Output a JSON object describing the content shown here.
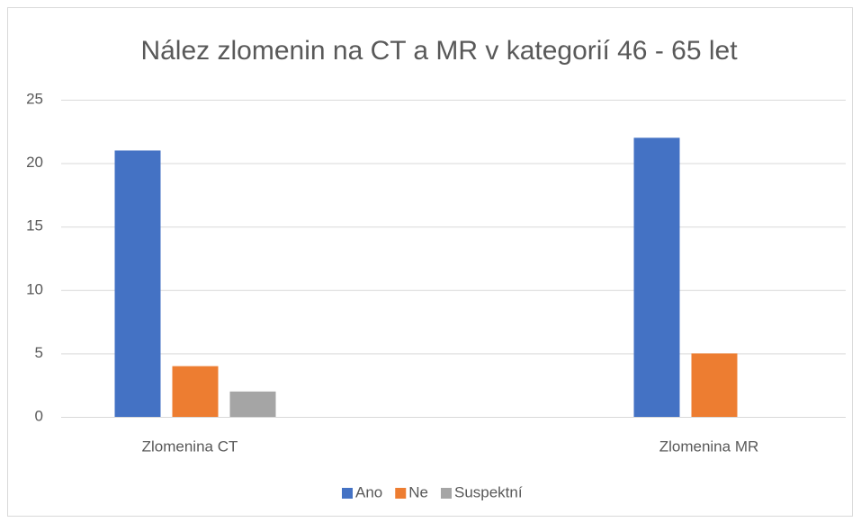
{
  "chart_data": {
    "type": "bar",
    "title": "Nález zlomenin na CT a MR v kategorií 46 - 65 let",
    "categories": [
      "Zlomenina CT",
      "Zlomenina MR"
    ],
    "series": [
      {
        "name": "Ano",
        "color": "#4472c4",
        "values": [
          21,
          22
        ]
      },
      {
        "name": "Ne",
        "color": "#ed7d31",
        "values": [
          4,
          5
        ]
      },
      {
        "name": "Suspektní",
        "color": "#a5a5a5",
        "values": [
          2,
          0
        ]
      }
    ],
    "ylim": [
      0,
      25
    ],
    "yticks": [
      0,
      5,
      10,
      15,
      20,
      25
    ],
    "grid": true,
    "legend": "bottom"
  }
}
